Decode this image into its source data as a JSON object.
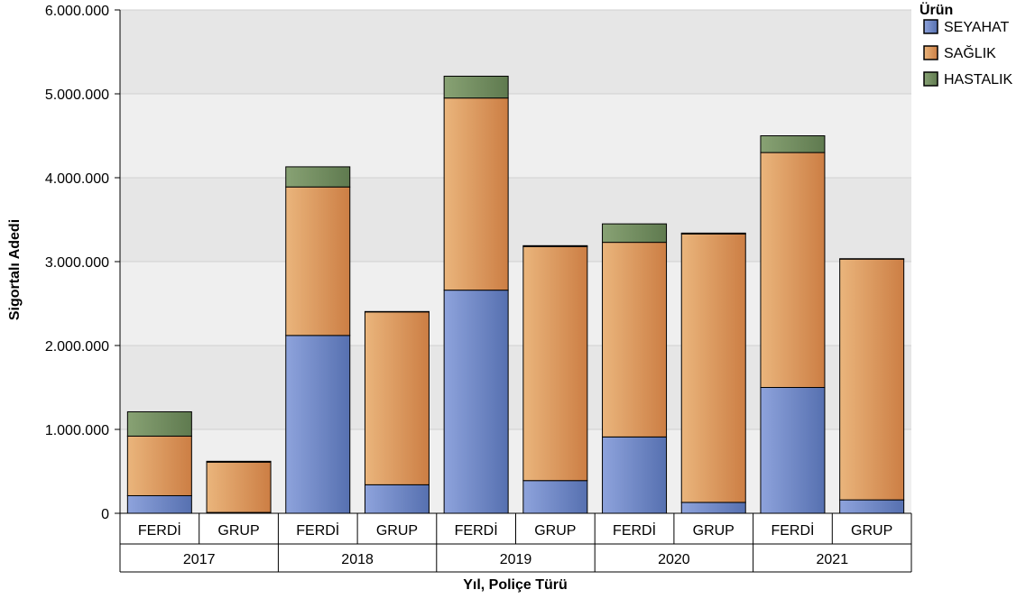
{
  "chart_data": {
    "type": "bar",
    "stacked": true,
    "xlabel": "Yıl, Poliçe Türü",
    "ylabel": "Sigortalı Adedi",
    "ylim": [
      0,
      6000000
    ],
    "yticks": [
      {
        "value": 0,
        "label": "0"
      },
      {
        "value": 1000000,
        "label": "1.000.000"
      },
      {
        "value": 2000000,
        "label": "2.000.000"
      },
      {
        "value": 3000000,
        "label": "3.000.000"
      },
      {
        "value": 4000000,
        "label": "4.000.000"
      },
      {
        "value": 5000000,
        "label": "5.000.000"
      },
      {
        "value": 6000000,
        "label": "6.000.000"
      }
    ],
    "groups": [
      "2017",
      "2018",
      "2019",
      "2020",
      "2021"
    ],
    "categories": [
      "FERDİ",
      "GRUP",
      "FERDİ",
      "GRUP",
      "FERDİ",
      "GRUP",
      "FERDİ",
      "GRUP",
      "FERDİ",
      "GRUP"
    ],
    "legend_title": "Ürün",
    "legend_position": "top-right",
    "series": [
      {
        "name": "SEYAHAT",
        "color": "#6f86c6",
        "values": [
          210000,
          10000,
          2120000,
          340000,
          2660000,
          390000,
          910000,
          130000,
          1500000,
          160000
        ]
      },
      {
        "name": "SAĞLIK",
        "color": "#d98c4e",
        "values": [
          710000,
          600000,
          1770000,
          2060000,
          2290000,
          2790000,
          2320000,
          3200000,
          2800000,
          2870000
        ]
      },
      {
        "name": "HASTALIK",
        "color": "#6f8a5c",
        "values": [
          290000,
          10000,
          240000,
          5000,
          260000,
          10000,
          220000,
          10000,
          200000,
          5000
        ]
      }
    ],
    "grid": true
  }
}
